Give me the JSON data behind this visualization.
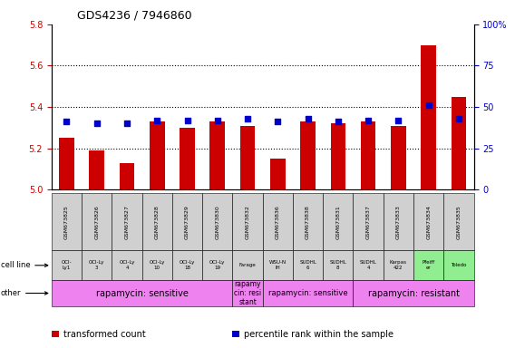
{
  "title": "GDS4236 / 7946860",
  "samples": [
    "GSM673825",
    "GSM673826",
    "GSM673827",
    "GSM673828",
    "GSM673829",
    "GSM673830",
    "GSM673832",
    "GSM673836",
    "GSM673838",
    "GSM673831",
    "GSM673837",
    "GSM673833",
    "GSM673834",
    "GSM673835"
  ],
  "bar_values": [
    5.25,
    5.19,
    5.13,
    5.33,
    5.3,
    5.33,
    5.31,
    5.15,
    5.33,
    5.32,
    5.33,
    5.31,
    5.7,
    5.45
  ],
  "dot_values_pct": [
    41,
    40,
    40,
    42,
    42,
    42,
    43,
    41,
    43,
    41,
    42,
    42,
    51,
    43
  ],
  "ylim_left": [
    5.0,
    5.8
  ],
  "ylim_right": [
    0,
    100
  ],
  "yticks_left": [
    5.0,
    5.2,
    5.4,
    5.6,
    5.8
  ],
  "yticks_right": [
    0,
    25,
    50,
    75,
    100
  ],
  "bar_color": "#cc0000",
  "dot_color": "#0000cc",
  "cell_line_labels": [
    "OCI-\nLy1",
    "OCI-Ly\n3",
    "OCI-Ly\n4",
    "OCI-Ly\n10",
    "OCI-Ly\n18",
    "OCI-Ly\n19",
    "Farage",
    "WSU-N\nIH",
    "SUDHL\n6",
    "SUDHL\n8",
    "SUDHL\n4",
    "Karpas\n422",
    "Pfeiff\ner",
    "Toledo"
  ],
  "cell_line_bg": [
    "#d0d0d0",
    "#d0d0d0",
    "#d0d0d0",
    "#d0d0d0",
    "#d0d0d0",
    "#d0d0d0",
    "#d0d0d0",
    "#d0d0d0",
    "#d0d0d0",
    "#d0d0d0",
    "#d0d0d0",
    "#d0d0d0",
    "#90ee90",
    "#90ee90"
  ],
  "other_groups": [
    {
      "text": "rapamycin: sensitive",
      "start": 0,
      "end": 5,
      "color": "#ee82ee",
      "fontsize": 7
    },
    {
      "text": "rapamy\ncin: resi\nstant",
      "start": 6,
      "end": 6,
      "color": "#ee82ee",
      "fontsize": 5.5
    },
    {
      "text": "rapamycin: sensitive",
      "start": 7,
      "end": 9,
      "color": "#ee82ee",
      "fontsize": 6
    },
    {
      "text": "rapamycin: resistant",
      "start": 10,
      "end": 13,
      "color": "#ee82ee",
      "fontsize": 7
    }
  ],
  "row_label_cellline": "cell line",
  "row_label_other": "other",
  "legend_bar_label": "transformed count",
  "legend_dot_label": "percentile rank within the sample",
  "bar_color_legend": "#cc0000",
  "dot_color_legend": "#0000cc"
}
